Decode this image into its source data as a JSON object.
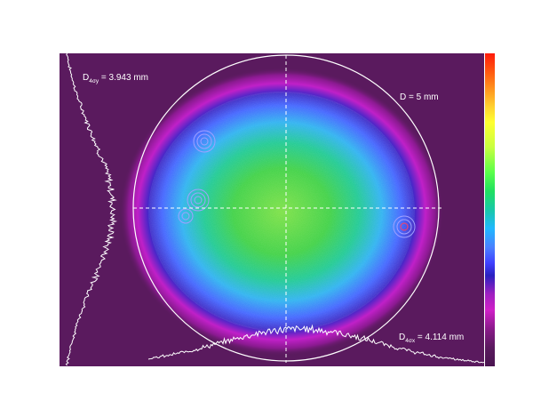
{
  "labels": {
    "d4sigma_y": {
      "prefix": "D",
      "sub": "4σy",
      "value": " = 3.943 mm"
    },
    "aperture_d": "D = 5 mm",
    "d4sigma_x": {
      "prefix": "D",
      "sub": "4σx",
      "value": " = 4.114 mm"
    }
  },
  "colors": {
    "background": "#5a1a5e",
    "profile_line": "#ffffff",
    "aperture_circle": "#ffffff",
    "crosshair": "#ffffff"
  },
  "colorbar": {
    "stops": [
      "#ff1a0a",
      "#ff9a20",
      "#ffff30",
      "#5aff4a",
      "#18c8a8",
      "#20b8ff",
      "#4040ff",
      "#d020c8",
      "#5a1a5e"
    ]
  }
}
